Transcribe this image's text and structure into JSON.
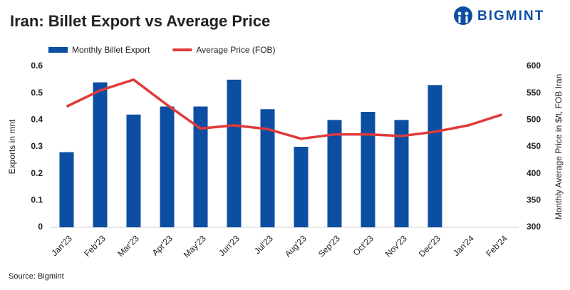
{
  "chart_data": {
    "type": "bar_line",
    "title": "Iran: Billet Export vs Average Price",
    "logo": "BIGMINT",
    "source": "Source: Bigmint",
    "y_label": "Exports in mnt",
    "y2_label": "Monthly Average Price in $/t, FOB Iran",
    "categories": [
      "Jan'23",
      "Feb'23",
      "Mar'23",
      "Apr'23",
      "May'23",
      "Jun'23",
      "Jul'23",
      "Aug'23",
      "Sep'23",
      "Oct'23",
      "Nov'23",
      "Dec'23",
      "Jan'24",
      "Feb'24"
    ],
    "series": [
      {
        "name": "Monthly Billet Export",
        "type": "bar",
        "color": "#0b4ea2",
        "values": [
          0.28,
          0.54,
          0.42,
          0.45,
          0.45,
          0.55,
          0.44,
          0.3,
          0.4,
          0.43,
          0.4,
          0.53,
          null,
          null
        ]
      },
      {
        "name": "Average Price (FOB)",
        "type": "line",
        "axis": "y2",
        "color": "#e03a3a",
        "values": [
          525,
          555,
          575,
          528,
          484,
          490,
          483,
          465,
          473,
          473,
          470,
          478,
          490,
          510
        ]
      }
    ],
    "ylim": [
      0,
      0.6
    ],
    "yticks": [
      0,
      0.1,
      0.2,
      0.3,
      0.4,
      0.5,
      0.6
    ],
    "y2lim": [
      300,
      600
    ],
    "y2ticks": [
      300,
      350,
      400,
      450,
      500,
      550,
      600
    ],
    "grid": false
  }
}
